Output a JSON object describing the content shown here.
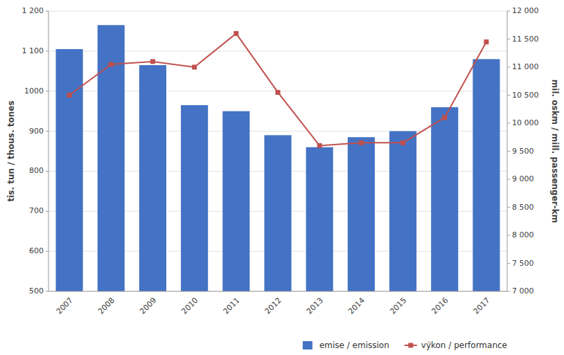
{
  "chart_data": {
    "type": "bar",
    "categories": [
      "2007",
      "2008",
      "2009",
      "2010",
      "2011",
      "2012",
      "2013",
      "2014",
      "2015",
      "2016",
      "2017"
    ],
    "series": [
      {
        "name": "emise / emission",
        "type": "bar",
        "color": "#4472C4",
        "values": [
          1105,
          1165,
          1065,
          965,
          950,
          890,
          860,
          885,
          900,
          960,
          1080
        ]
      },
      {
        "name": "výkon / performance",
        "type": "line",
        "axis": "y2",
        "color": "#C0504D",
        "marker": "square",
        "values": [
          10500,
          11050,
          11100,
          11000,
          11600,
          10550,
          9600,
          9650,
          9650,
          10100,
          11450
        ]
      }
    ],
    "ylabel": "tis. tun / thous. tones",
    "y2label": "mil. oskm / mill. passenger-km",
    "ylim": [
      500,
      1200
    ],
    "yticks": [
      500,
      600,
      700,
      800,
      900,
      1000,
      {
        "value": 1100,
        "label": "1 100"
      },
      {
        "value": 1200,
        "label": "1 200"
      }
    ],
    "y2lim": [
      7000,
      12000
    ],
    "y2ticks": [
      {
        "value": 7000,
        "label": "7 000"
      },
      {
        "value": 7500,
        "label": "7 500"
      },
      {
        "value": 8000,
        "label": "8 000"
      },
      {
        "value": 8500,
        "label": "8 500"
      },
      {
        "value": 9000,
        "label": "9 000"
      },
      {
        "value": 9500,
        "label": "9 500"
      },
      {
        "value": 10000,
        "label": "10 000"
      },
      {
        "value": 10500,
        "label": "10 500"
      },
      {
        "value": 11000,
        "label": "11 000"
      },
      {
        "value": 11500,
        "label": "11 500"
      },
      {
        "value": 12000,
        "label": "12 000"
      }
    ],
    "grid": true,
    "legend": "lower right"
  }
}
